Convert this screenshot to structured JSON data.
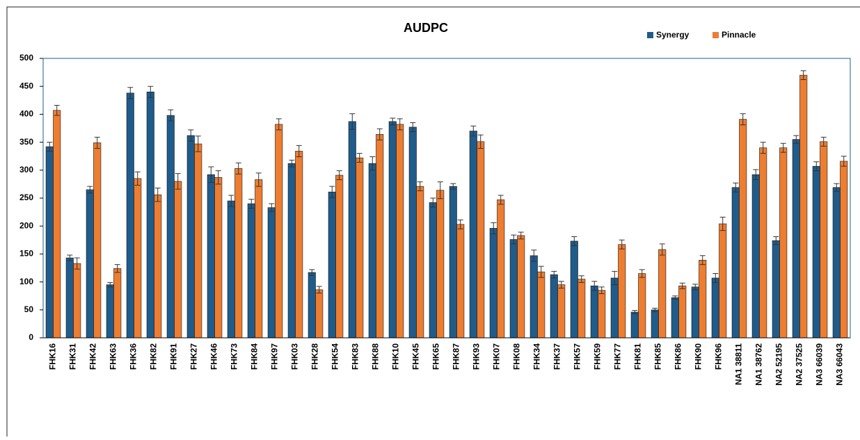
{
  "chart_data": {
    "type": "bar",
    "title": "AUDPC",
    "categories": [
      "FHK16",
      "FHK31",
      "FHK42",
      "FHK63",
      "FHK36",
      "FHK82",
      "FHK91",
      "FHK27",
      "FHK46",
      "FHK73",
      "FHK84",
      "FHK97",
      "FHK03",
      "FHK28",
      "FHK54",
      "FHK83",
      "FHK88",
      "FHK10",
      "FHK45",
      "FHK65",
      "FHK87",
      "FHK93",
      "FHK07",
      "FHK08",
      "FHK34",
      "FHK37",
      "FHK57",
      "FHK59",
      "FHK77",
      "FHK81",
      "FHK85",
      "FHK86",
      "FHK90",
      "FHK96",
      "NA1 38811",
      "NA1 38762",
      "NA2 52195",
      "NA2 37525",
      "NA3 66039",
      "NA3 66043"
    ],
    "series": [
      {
        "name": "Synergy",
        "color": "#1f5c8b",
        "values": [
          342,
          143,
          265,
          95,
          438,
          440,
          398,
          362,
          292,
          245,
          240,
          233,
          312,
          117,
          261,
          387,
          312,
          387,
          377,
          242,
          271,
          370,
          196,
          176,
          147,
          113,
          173,
          93,
          107,
          46,
          50,
          72,
          91,
          107,
          269,
          292,
          174,
          355,
          307,
          269
        ],
        "errors": [
          8,
          5,
          6,
          4,
          10,
          10,
          10,
          10,
          14,
          10,
          8,
          7,
          6,
          5,
          10,
          14,
          12,
          6,
          8,
          8,
          5,
          9,
          10,
          8,
          10,
          6,
          8,
          8,
          12,
          3,
          3,
          3,
          5,
          8,
          8,
          9,
          7,
          7,
          8,
          7
        ]
      },
      {
        "name": "Pinnacle",
        "color": "#ed7d31",
        "values": [
          407,
          133,
          349,
          124,
          285,
          256,
          280,
          347,
          287,
          303,
          283,
          382,
          334,
          86,
          291,
          322,
          364,
          382,
          271,
          264,
          203,
          351,
          247,
          183,
          118,
          95,
          105,
          85,
          167,
          115,
          158,
          93,
          139,
          204,
          391,
          340,
          340,
          470,
          351,
          316
        ],
        "errors": [
          9,
          10,
          10,
          7,
          12,
          12,
          14,
          14,
          12,
          10,
          12,
          10,
          10,
          6,
          8,
          8,
          10,
          10,
          8,
          15,
          8,
          12,
          8,
          6,
          10,
          6,
          6,
          6,
          8,
          7,
          10,
          5,
          8,
          12,
          10,
          10,
          8,
          8,
          8,
          9
        ]
      }
    ],
    "ylim": [
      0,
      500
    ],
    "yticks": [
      0,
      50,
      100,
      150,
      200,
      250,
      300,
      350,
      400,
      450,
      500
    ],
    "legend": "top-right"
  }
}
